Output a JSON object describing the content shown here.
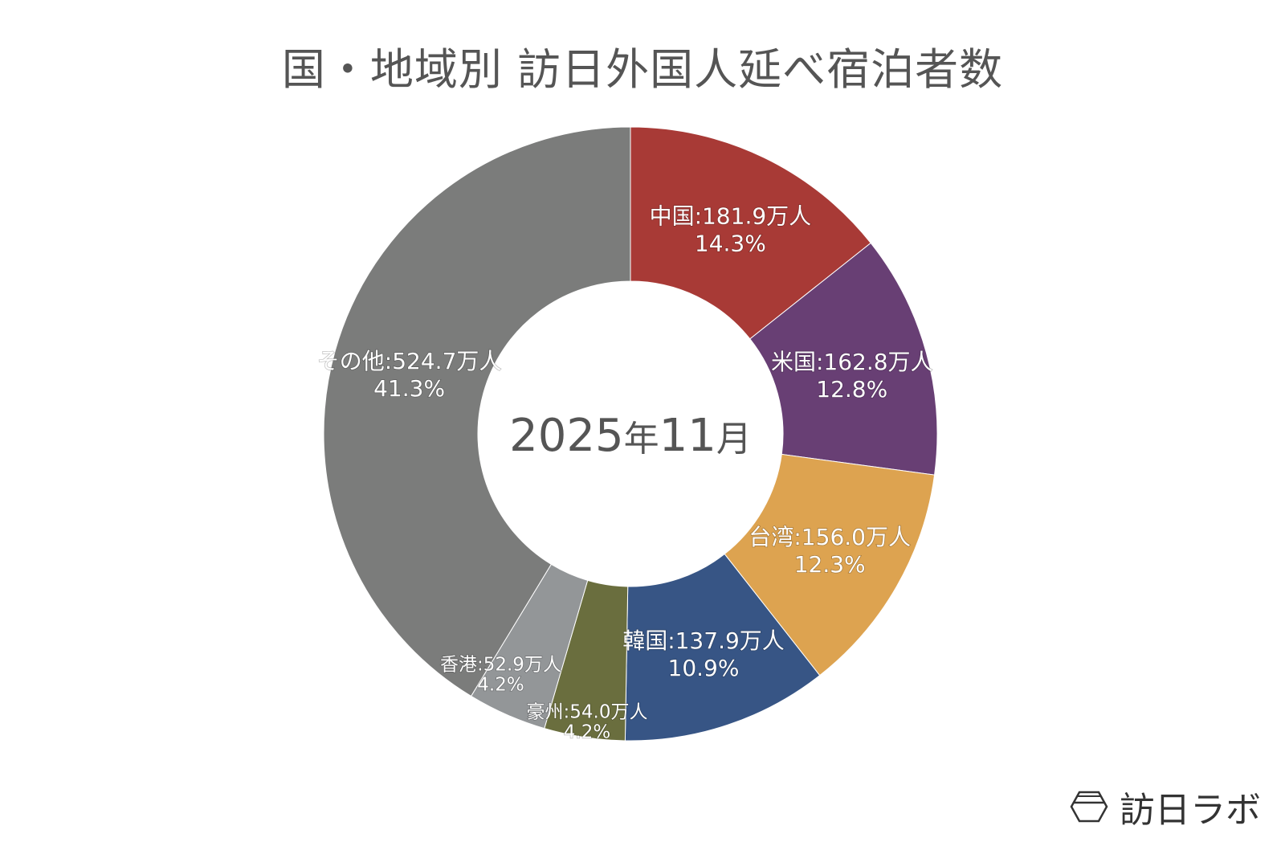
{
  "title": "国・地域別 訪日外国人延べ宿泊者数",
  "center": {
    "year": "2025",
    "year_unit": "年",
    "month": "11",
    "month_unit": "月"
  },
  "logo": {
    "text": "訪日ラボ"
  },
  "chart_data": {
    "type": "pie",
    "donut": true,
    "title": "国・地域別 訪日外国人延べ宿泊者数",
    "unit": "万人",
    "slices": [
      {
        "label": "中国",
        "value": 181.9,
        "percent": 14.3,
        "color": "#a83a36"
      },
      {
        "label": "米国",
        "value": 162.8,
        "percent": 12.8,
        "color": "#683f74"
      },
      {
        "label": "台湾",
        "value": 156.0,
        "percent": 12.3,
        "color": "#dda350"
      },
      {
        "label": "韓国",
        "value": 137.9,
        "percent": 10.9,
        "color": "#375585"
      },
      {
        "label": "豪州",
        "value": 54.0,
        "percent": 4.2,
        "color": "#6a6e3e"
      },
      {
        "label": "香港",
        "value": 52.9,
        "percent": 4.2,
        "color": "#939698"
      },
      {
        "label": "その他",
        "value": 524.7,
        "percent": 41.3,
        "color": "#7b7c7b"
      }
    ]
  }
}
